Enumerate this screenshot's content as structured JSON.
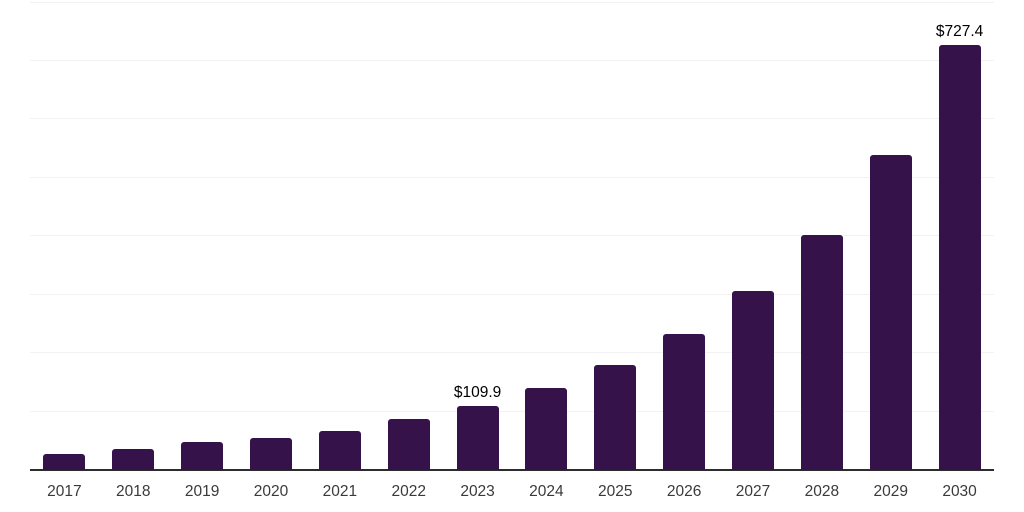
{
  "chart_data": {
    "type": "bar",
    "title": "",
    "xlabel": "",
    "ylabel": "",
    "categories": [
      "2017",
      "2018",
      "2019",
      "2020",
      "2021",
      "2022",
      "2023",
      "2024",
      "2025",
      "2026",
      "2027",
      "2028",
      "2029",
      "2030"
    ],
    "values": [
      27.4,
      35.9,
      47.9,
      54.7,
      66.7,
      87.2,
      109.9,
      140.2,
      180.3,
      232.4,
      305.9,
      401.6,
      538.4,
      727.4
    ],
    "data_labels": [
      "",
      "",
      "",
      "",
      "",
      "",
      "$109.9",
      "",
      "",
      "",
      "",
      "",
      "",
      "$727.4"
    ],
    "ylim": [
      0,
      800
    ],
    "gridline_step": 100,
    "grid": true,
    "legend_position": "none",
    "colors": {
      "bar": "#36124A",
      "gridline": "#f2f2f2",
      "axis_line": "#2d2d2d",
      "data_label": "#000000",
      "tick_label": "#3a3a3a",
      "background": "#ffffff"
    }
  }
}
